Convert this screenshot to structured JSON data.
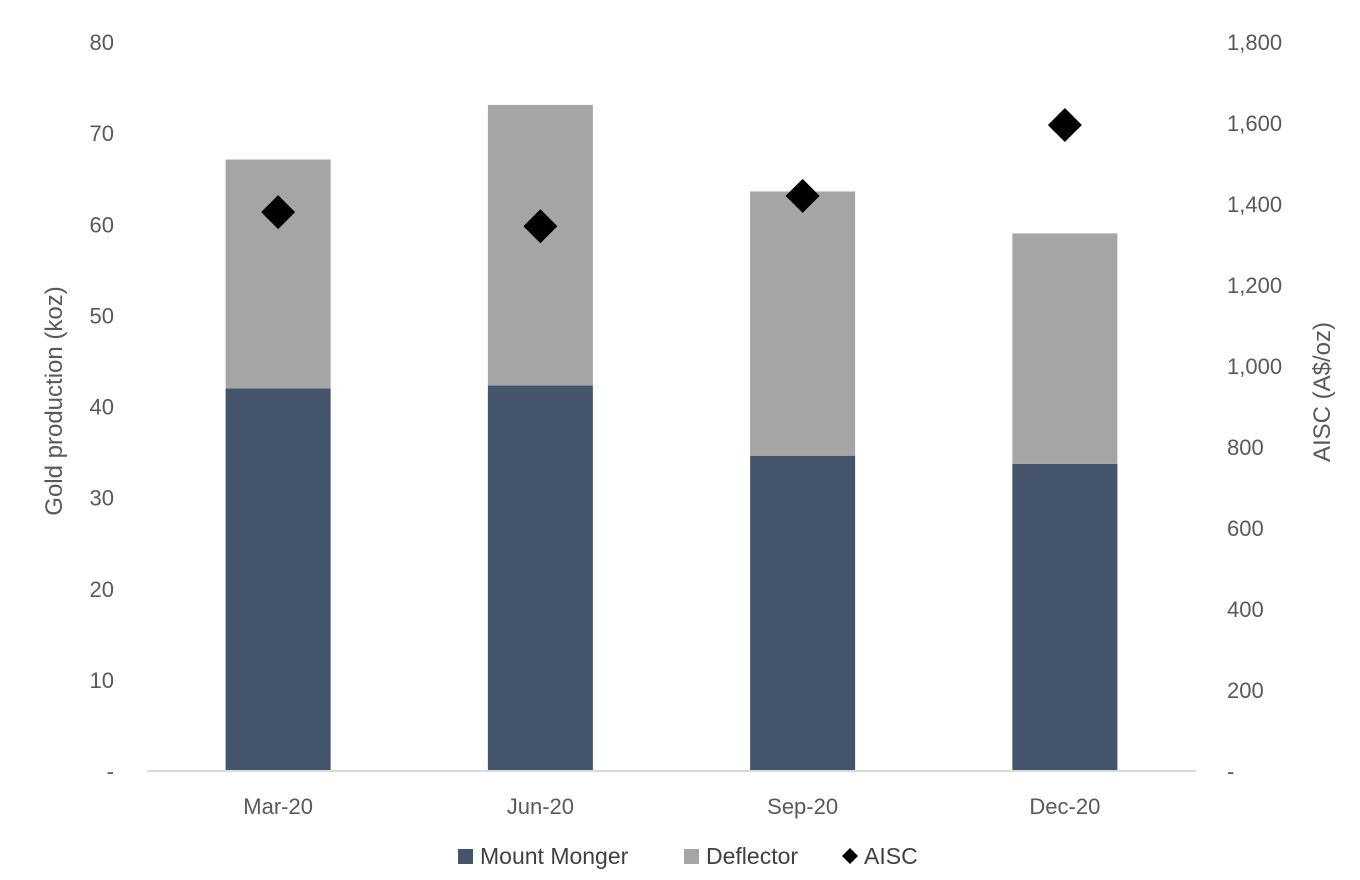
{
  "chart_data": {
    "type": "bar",
    "stacked": true,
    "categories": [
      "Mar-20",
      "Jun-20",
      "Sep-20",
      "Dec-20"
    ],
    "series": [
      {
        "name": "Mount Monger",
        "kind": "bar",
        "axis": "left",
        "color": "#44546a",
        "values": [
          42,
          42.3,
          34.6,
          33.7
        ]
      },
      {
        "name": "Deflector",
        "kind": "bar",
        "axis": "left",
        "color": "#a5a5a5",
        "values": [
          25.1,
          30.8,
          29,
          25.3
        ]
      },
      {
        "name": "AISC",
        "kind": "scatter",
        "marker": "diamond",
        "axis": "right",
        "color": "#000000",
        "values": [
          1380,
          1345,
          1420,
          1595
        ]
      }
    ],
    "ylabel": "Gold production (koz)",
    "ylabel_right": "AISC (A$/oz)",
    "ylim": [
      0,
      80
    ],
    "ylim_right": [
      0,
      1800
    ],
    "yticks": [
      "-",
      "10",
      "20",
      "30",
      "40",
      "50",
      "60",
      "70",
      "80"
    ],
    "yticks_right": [
      "-",
      "200",
      "400",
      "600",
      "800",
      "1,000",
      "1,200",
      "1,400",
      "1,600",
      "1,800"
    ],
    "grid": false,
    "legend_position": "bottom"
  }
}
